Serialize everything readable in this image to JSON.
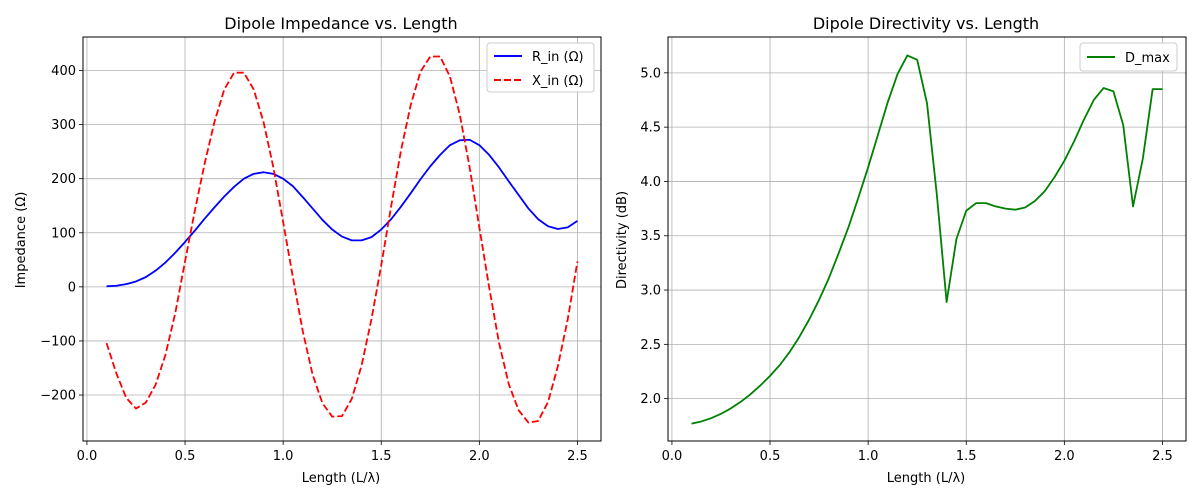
{
  "chart_data": [
    {
      "type": "line",
      "title": "Dipole Impedance vs. Length",
      "xlabel": "Length (L/λ)",
      "ylabel": "Impedance (Ω)",
      "xlim": [
        -0.02,
        2.62
      ],
      "ylim": [
        -285,
        462
      ],
      "xticks": [
        0.0,
        0.5,
        1.0,
        1.5,
        2.0,
        2.5
      ],
      "xtick_labels": [
        "0.0",
        "0.5",
        "1.0",
        "1.5",
        "2.0",
        "2.5"
      ],
      "yticks": [
        -200,
        -100,
        0,
        100,
        200,
        300,
        400
      ],
      "ytick_labels": [
        "−200",
        "−100",
        "0",
        "100",
        "200",
        "300",
        "400"
      ],
      "grid": true,
      "legend_position": "top-right",
      "x": [
        0.1,
        0.15,
        0.2,
        0.25,
        0.3,
        0.35,
        0.4,
        0.45,
        0.5,
        0.55,
        0.6,
        0.65,
        0.7,
        0.75,
        0.8,
        0.85,
        0.9,
        0.95,
        1.0,
        1.05,
        1.1,
        1.15,
        1.2,
        1.25,
        1.3,
        1.35,
        1.4,
        1.45,
        1.5,
        1.55,
        1.6,
        1.65,
        1.7,
        1.75,
        1.8,
        1.85,
        1.9,
        1.95,
        2.0,
        2.05,
        2.1,
        2.15,
        2.2,
        2.25,
        2.3,
        2.35,
        2.4,
        2.45,
        2.5
      ],
      "series": [
        {
          "name": "R_in (Ω)",
          "color": "#0000ff",
          "style": "solid",
          "values": [
            1,
            2,
            5,
            10,
            18,
            30,
            45,
            63,
            83,
            104,
            126,
            147,
            167,
            185,
            200,
            209,
            212,
            209,
            200,
            186,
            166,
            145,
            124,
            106,
            93,
            86,
            86,
            92,
            106,
            125,
            148,
            173,
            199,
            223,
            244,
            262,
            271,
            272,
            262,
            244,
            221,
            195,
            170,
            145,
            125,
            112,
            107,
            110,
            122
          ]
        },
        {
          "name": "X_in (Ω)",
          "color": "#ff0000",
          "style": "dashed",
          "values": [
            -104,
            -160,
            -205,
            -225,
            -214,
            -181,
            -126,
            -49,
            47,
            141,
            228,
            305,
            365,
            396,
            396,
            365,
            305,
            221,
            120,
            17,
            -82,
            -162,
            -215,
            -240,
            -239,
            -207,
            -145,
            -60,
            40,
            148,
            251,
            336,
            398,
            426,
            426,
            389,
            319,
            222,
            110,
            -1,
            -103,
            -180,
            -228,
            -251,
            -248,
            -213,
            -147,
            -61,
            47
          ]
        }
      ]
    },
    {
      "type": "line",
      "title": "Dipole Directivity vs. Length",
      "xlabel": "Length (L/λ)",
      "ylabel": "Directivity (dB)",
      "xlim": [
        -0.02,
        2.62
      ],
      "ylim": [
        1.61,
        5.33
      ],
      "xticks": [
        0.0,
        0.5,
        1.0,
        1.5,
        2.0,
        2.5
      ],
      "xtick_labels": [
        "0.0",
        "0.5",
        "1.0",
        "1.5",
        "2.0",
        "2.5"
      ],
      "yticks": [
        2.0,
        2.5,
        3.0,
        3.5,
        4.0,
        4.5,
        5.0
      ],
      "ytick_labels": [
        "2.0",
        "2.5",
        "3.0",
        "3.5",
        "4.0",
        "4.5",
        "5.0"
      ],
      "grid": true,
      "legend_position": "top-right",
      "x": [
        0.1,
        0.15,
        0.2,
        0.25,
        0.3,
        0.35,
        0.4,
        0.45,
        0.5,
        0.55,
        0.6,
        0.65,
        0.7,
        0.75,
        0.8,
        0.85,
        0.9,
        0.95,
        1.0,
        1.05,
        1.1,
        1.15,
        1.2,
        1.25,
        1.3,
        1.35,
        1.4,
        1.45,
        1.5,
        1.55,
        1.6,
        1.65,
        1.7,
        1.75,
        1.8,
        1.85,
        1.9,
        1.95,
        2.0,
        2.05,
        2.1,
        2.15,
        2.2,
        2.25,
        2.3,
        2.35,
        2.4,
        2.45,
        2.5
      ],
      "series": [
        {
          "name": "D_max",
          "color": "#008000",
          "style": "solid",
          "values": [
            1.77,
            1.79,
            1.82,
            1.86,
            1.91,
            1.97,
            2.04,
            2.12,
            2.21,
            2.31,
            2.43,
            2.57,
            2.73,
            2.91,
            3.11,
            3.34,
            3.58,
            3.85,
            4.13,
            4.43,
            4.73,
            4.99,
            5.16,
            5.12,
            4.72,
            3.88,
            2.89,
            3.47,
            3.73,
            3.8,
            3.8,
            3.77,
            3.75,
            3.74,
            3.76,
            3.82,
            3.91,
            4.04,
            4.19,
            4.37,
            4.57,
            4.75,
            4.86,
            4.83,
            4.52,
            3.77,
            4.21,
            4.85,
            4.85
          ]
        }
      ]
    }
  ]
}
